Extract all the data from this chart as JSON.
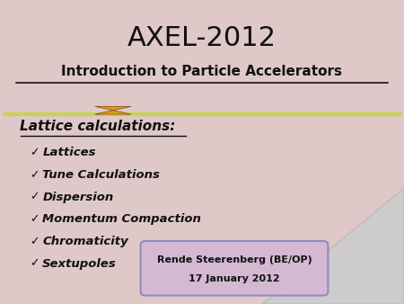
{
  "title_main": "AXEL-2012",
  "title_sub": "Introduction to Particle Accelerators",
  "section_title": "Lattice calculations:",
  "bullet_items": [
    "Lattices",
    "Tune Calculations",
    "Dispersion",
    "Momentum Compaction",
    "Chromaticity",
    "Sextupoles"
  ],
  "author": "Rende Steerenberg (BE/OP)",
  "date": "17 January 2012",
  "bg_color": "#dfc8c8",
  "separator_color": "#c8d44e",
  "box_bg": "#d4b8d4",
  "box_border": "#8888bb",
  "title_color": "#111111",
  "section_color": "#111111",
  "bullet_color": "#111111",
  "curl_color": "#cccccc",
  "curl_edge_color": "#aaaaaa",
  "icon_color": "#d4a017",
  "icon_edge_color": "#8B4513"
}
